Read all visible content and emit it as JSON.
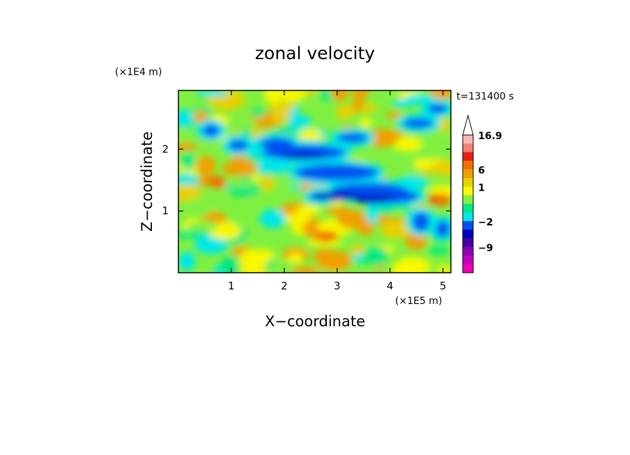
{
  "chart_data": {
    "type": "heatmap",
    "title": "zonal velocity",
    "xlabel": "X−coordinate",
    "ylabel": "Z−coordinate",
    "x_unit": "(×1E5 m)",
    "y_unit": "(×1E4 m)",
    "time_label": "t=131400 s",
    "xlim": [
      0,
      5.15
    ],
    "ylim": [
      0,
      2.95
    ],
    "x_ticks": [
      "1",
      "2",
      "3",
      "4",
      "5"
    ],
    "y_ticks": [
      "1",
      "2"
    ],
    "colorbar": {
      "labels": [
        "16.9",
        "6",
        "1",
        "−2",
        "−9"
      ],
      "colors": [
        "#f5b8b0",
        "#f08070",
        "#e82010",
        "#f07000",
        "#f0a000",
        "#e8d000",
        "#f8f800",
        "#80f040",
        "#00e880",
        "#00e8e8",
        "#0050f0",
        "#0000c0",
        "#4800a0",
        "#9000b0",
        "#c000c0",
        "#f000b0"
      ],
      "extend": "max"
    }
  }
}
